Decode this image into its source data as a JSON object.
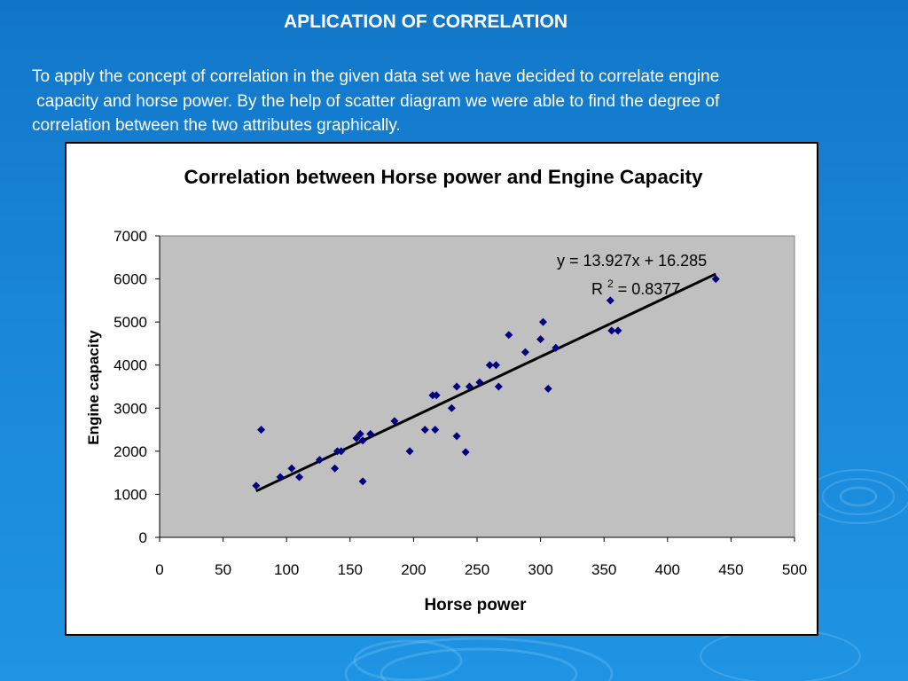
{
  "slide": {
    "title": "APLICATION OF CORRELATION",
    "body_lines": [
      "To apply the concept of correlation in the given data set we have decided to correlate engine",
      " capacity and horse power. By the help of scatter diagram we were able to find the degree of",
      "correlation between the two attributes graphically."
    ]
  },
  "colors": {
    "background": "#1a86d8",
    "plot_area": "#c0c0c0",
    "marker": "#000080",
    "trendline": "#000000"
  },
  "chart_data": {
    "type": "scatter",
    "title": "Correlation between Horse power and Engine Capacity",
    "xlabel": "Horse power",
    "ylabel": "Engine capacity",
    "xlim": [
      0,
      500
    ],
    "ylim": [
      0,
      7000
    ],
    "x_ticks": [
      "0",
      "50",
      "100",
      "150",
      "200",
      "250",
      "300",
      "350",
      "400",
      "450",
      "500"
    ],
    "y_ticks": [
      "0",
      "1000",
      "2000",
      "3000",
      "4000",
      "5000",
      "6000",
      "7000"
    ],
    "grid": false,
    "legend": "none",
    "marker": "diamond",
    "points": [
      [
        76,
        1200
      ],
      [
        80,
        2500
      ],
      [
        95,
        1400
      ],
      [
        104,
        1600
      ],
      [
        110,
        1400
      ],
      [
        126,
        1800
      ],
      [
        138,
        1600
      ],
      [
        140,
        2000
      ],
      [
        143,
        2000
      ],
      [
        155,
        2300
      ],
      [
        158,
        2400
      ],
      [
        160,
        2250
      ],
      [
        160,
        1300
      ],
      [
        166,
        2400
      ],
      [
        185,
        2700
      ],
      [
        197,
        2000
      ],
      [
        209,
        2500
      ],
      [
        215,
        3300
      ],
      [
        217,
        2500
      ],
      [
        218,
        3300
      ],
      [
        230,
        3000
      ],
      [
        234,
        3500
      ],
      [
        234,
        2350
      ],
      [
        241,
        1980
      ],
      [
        244,
        3500
      ],
      [
        252,
        3600
      ],
      [
        260,
        4000
      ],
      [
        265,
        4000
      ],
      [
        267,
        3500
      ],
      [
        275,
        4700
      ],
      [
        288,
        4300
      ],
      [
        300,
        4600
      ],
      [
        302,
        5000
      ],
      [
        306,
        3450
      ],
      [
        312,
        4400
      ],
      [
        355,
        5500
      ],
      [
        356,
        4800
      ],
      [
        361,
        4800
      ],
      [
        438,
        6000
      ]
    ],
    "trendline": {
      "type": "linear",
      "slope": 13.927,
      "intercept": 16.285,
      "x_range": [
        76,
        438
      ],
      "equation_label": "y = 13.927x + 16.285",
      "r2_prefix": "R",
      "r2_sup": "2",
      "r2_value": " = 0.8377"
    }
  }
}
